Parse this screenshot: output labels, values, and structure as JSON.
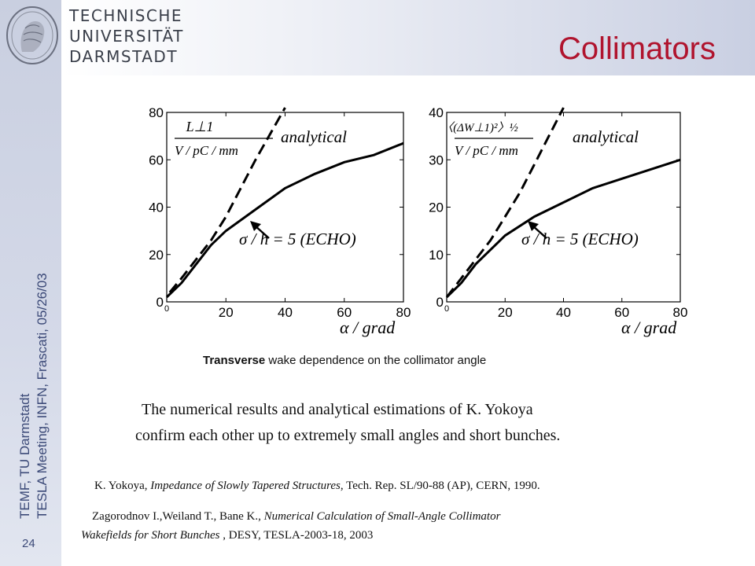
{
  "header": {
    "university_lines": [
      "TECHNISCHE",
      "UNIVERSITÄT",
      "DARMSTADT"
    ],
    "title": "Collimators"
  },
  "sidebar": {
    "line1": "TEMF, TU Darmstadt",
    "line2": "TESLA Meeting, INFN, Frascati, 05/26/03",
    "page_number": "24"
  },
  "chart_data": [
    {
      "type": "line",
      "xlim": [
        0,
        80
      ],
      "ylim": [
        0,
        80
      ],
      "xticks": [
        "0",
        "20",
        "40",
        "60",
        "80"
      ],
      "yticks": [
        "0",
        "20",
        "40",
        "60",
        "80"
      ],
      "xlabel": "α / grad",
      "ylabel_num": "L⊥1",
      "ylabel_den": "V / pC / mm",
      "annotation": "σ / h = 5 (ECHO)",
      "series": [
        {
          "name": "analytical",
          "style": "dashed",
          "x": [
            1,
            5,
            10,
            15,
            20,
            25,
            30,
            35,
            40
          ],
          "y": [
            4,
            10,
            18,
            26,
            36,
            48,
            60,
            71,
            82
          ]
        },
        {
          "style": "solid",
          "x": [
            0,
            5,
            10,
            15,
            20,
            30,
            40,
            50,
            60,
            70,
            80
          ],
          "y": [
            2,
            8,
            16,
            24,
            30,
            39,
            48,
            54,
            59,
            62,
            67
          ]
        }
      ]
    },
    {
      "type": "line",
      "xlim": [
        0,
        80
      ],
      "ylim": [
        0,
        40
      ],
      "xticks": [
        "0",
        "20",
        "40",
        "60",
        "80"
      ],
      "yticks": [
        "0",
        "10",
        "20",
        "30",
        "40"
      ],
      "xlabel": "α / grad",
      "ylabel_num": "〈(ΔW⊥1)²〉½",
      "ylabel_den": "V / pC / mm",
      "annotation": "σ / h = 5 (ECHO)",
      "series": [
        {
          "name": "analytical",
          "style": "dashed",
          "x": [
            0,
            5,
            10,
            15,
            20,
            25,
            30,
            35,
            40
          ],
          "y": [
            1,
            5,
            9,
            13,
            18,
            23,
            29,
            35,
            41
          ]
        },
        {
          "style": "solid",
          "x": [
            0,
            5,
            10,
            15,
            20,
            30,
            40,
            50,
            60,
            70,
            80
          ],
          "y": [
            1,
            4,
            8,
            11,
            14,
            18,
            21,
            24,
            26,
            28,
            30
          ]
        }
      ]
    }
  ],
  "caption": {
    "bold": "Transverse",
    "rest": " wake dependence on the collimator angle"
  },
  "main_text": {
    "line1": "The numerical results and analytical estimations of K. Yokoya",
    "line2": "confirm each other up to extremely small angles and short bunches."
  },
  "refs": {
    "ref1_a": "K. Yokoya, ",
    "ref1_b": "Impedance of Slowly Tapered Structures",
    "ref1_c": ", Tech. Rep. SL/90-88 (AP), CERN, 1990.",
    "ref2_a": "Zagorodnov I.,Weiland T., Bane K., ",
    "ref2_b": "Numerical Calculation of Small-Angle Collimator",
    "ref2_c": "Wakefields for Short Bunches",
    "ref2_d": " , DESY, TESLA-2003-18, 2003"
  }
}
